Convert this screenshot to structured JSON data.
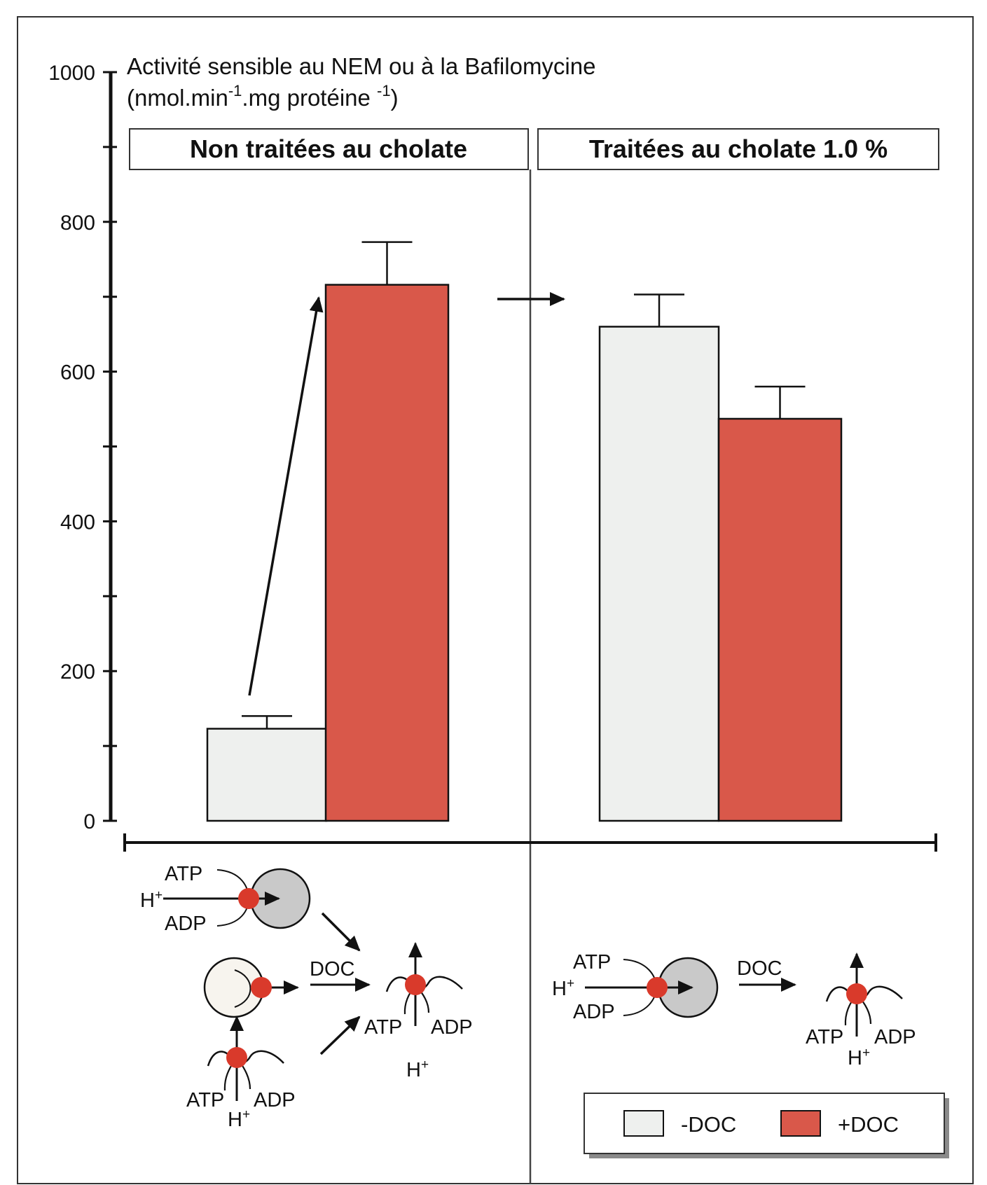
{
  "chart_data": {
    "type": "bar",
    "title": "",
    "ylabel_line1": "Activité sensible au NEM ou à la Bafilomycine",
    "ylabel_line2_parts": [
      "(nmol.min",
      "-1",
      ".mg protéine ",
      "-1",
      ")"
    ],
    "ylim": [
      0,
      1000
    ],
    "yticks": [
      0,
      200,
      400,
      600,
      800,
      1000
    ],
    "y_tick_labels": [
      "0",
      "200",
      "400",
      "600",
      "800",
      "1000"
    ],
    "grid": false,
    "legend_position": "bottom-right",
    "panels": [
      {
        "title": "Non traitées au cholate"
      },
      {
        "title": "Traitées au cholate 1.0 %"
      }
    ],
    "series": [
      {
        "name": "-DOC",
        "color": "#eef0ee",
        "values": [
          123,
          660
        ],
        "errors": [
          17,
          43
        ]
      },
      {
        "name": "+DOC",
        "color": "#d9584a",
        "values": [
          716,
          537
        ],
        "errors": [
          57,
          43
        ]
      }
    ]
  },
  "diagram": {
    "atp": "ATP",
    "adp": "ADP",
    "h": "H",
    "plus": "+",
    "doc": "DOC"
  },
  "colors": {
    "axis": "#111111",
    "minus_doc_fill": "#eef0ee",
    "plus_doc_fill": "#d9584a",
    "vesicle_gray": "#c9c9c9",
    "enzyme_red": "#d93a2b"
  }
}
